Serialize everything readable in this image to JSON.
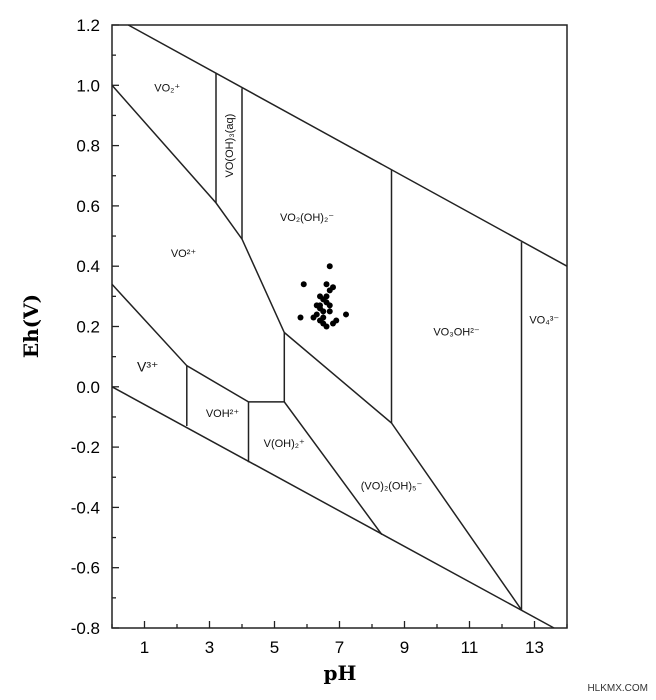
{
  "chart_data": {
    "type": "scatter",
    "title": "",
    "xlabel": "pH",
    "ylabel": "Eh(V)",
    "xlim": [
      0,
      14
    ],
    "ylim": [
      -0.8,
      1.2
    ],
    "xticks": [
      1,
      3,
      5,
      7,
      9,
      11,
      13
    ],
    "xtick_labels": [
      "1",
      "3",
      "5",
      "7",
      "9",
      "11",
      "13"
    ],
    "yticks": [
      1.2,
      1.0,
      0.8,
      0.6,
      0.4,
      0.2,
      0.0,
      -0.2,
      -0.4,
      -0.6,
      -0.8
    ],
    "ytick_labels": [
      "1.2",
      "1.0",
      "0.8",
      "0.6",
      "0.4",
      "0.2",
      "0.0",
      "-0.2",
      "-0.4",
      "-0.6",
      "-0.8"
    ],
    "grid": false,
    "boundaries": [
      {
        "id": "water-upper",
        "points": [
          [
            0.5,
            1.2
          ],
          [
            14,
            0.4
          ]
        ]
      },
      {
        "id": "water-lower",
        "points": [
          [
            0,
            0.0
          ],
          [
            13.6,
            -0.8
          ]
        ]
      },
      {
        "id": "vo2-vo-upper",
        "points": [
          [
            0,
            1.0
          ],
          [
            3.2,
            0.61
          ],
          [
            4.0,
            0.49
          ],
          [
            5.3,
            0.18
          ],
          [
            8.6,
            -0.12
          ],
          [
            12.6,
            -0.74
          ]
        ]
      },
      {
        "id": "v3-upper",
        "points": [
          [
            0,
            0.34
          ],
          [
            2.3,
            0.07
          ],
          [
            4.2,
            -0.05
          ],
          [
            5.3,
            -0.05
          ],
          [
            8.3,
            -0.49
          ]
        ]
      },
      {
        "id": "vo-oh3-left",
        "points": [
          [
            3.2,
            1.04
          ],
          [
            3.2,
            0.61
          ]
        ]
      },
      {
        "id": "vo-oh3-right",
        "points": [
          [
            4.0,
            0.99
          ],
          [
            4.0,
            0.49
          ]
        ]
      },
      {
        "id": "vo2oh2-right",
        "points": [
          [
            8.6,
            0.72
          ],
          [
            8.6,
            -0.12
          ]
        ]
      },
      {
        "id": "vo4-left",
        "points": [
          [
            12.6,
            0.48
          ],
          [
            12.6,
            -0.74
          ]
        ]
      },
      {
        "id": "v3-voh-split",
        "points": [
          [
            2.3,
            0.07
          ],
          [
            2.3,
            -0.13
          ]
        ]
      },
      {
        "id": "voh-voh2-split",
        "points": [
          [
            4.2,
            -0.05
          ],
          [
            4.2,
            -0.25
          ]
        ]
      },
      {
        "id": "voh2-vo2oh5-split",
        "points": [
          [
            5.3,
            0.18
          ],
          [
            5.3,
            -0.05
          ]
        ]
      }
    ],
    "regions": [
      {
        "label": "VO₂⁺",
        "x": 1.7,
        "y": 0.98
      },
      {
        "label": "VO(OH)₃(aq)",
        "x": 3.6,
        "y": 0.8,
        "rotated": true
      },
      {
        "label": "VO₂(OH)₂⁻",
        "x": 6.0,
        "y": 0.55
      },
      {
        "label": "VO²⁺",
        "x": 2.2,
        "y": 0.43
      },
      {
        "label": "VO₃OH²⁻",
        "x": 10.6,
        "y": 0.17
      },
      {
        "label": "VO₄³⁻",
        "x": 13.3,
        "y": 0.21
      },
      {
        "label": "V³⁺",
        "x": 1.1,
        "y": 0.05
      },
      {
        "label": "VOH²⁺",
        "x": 3.4,
        "y": -0.1
      },
      {
        "label": "V(OH)₂⁺",
        "x": 5.3,
        "y": -0.2
      },
      {
        "label": "(VO)₂(OH)₅⁻",
        "x": 8.6,
        "y": -0.34
      }
    ],
    "series": [
      {
        "points": [
          [
            5.9,
            0.34
          ],
          [
            6.7,
            0.4
          ],
          [
            5.8,
            0.23
          ],
          [
            6.2,
            0.23
          ],
          [
            7.2,
            0.24
          ],
          [
            6.4,
            0.3
          ],
          [
            6.5,
            0.29
          ],
          [
            6.6,
            0.3
          ],
          [
            6.7,
            0.32
          ],
          [
            6.6,
            0.34
          ],
          [
            6.8,
            0.33
          ],
          [
            6.3,
            0.27
          ],
          [
            6.4,
            0.26
          ],
          [
            6.6,
            0.28
          ],
          [
            6.5,
            0.25
          ],
          [
            6.3,
            0.24
          ],
          [
            6.4,
            0.22
          ],
          [
            6.5,
            0.23
          ],
          [
            6.7,
            0.25
          ],
          [
            6.9,
            0.22
          ],
          [
            6.6,
            0.2
          ],
          [
            6.5,
            0.21
          ],
          [
            6.8,
            0.21
          ],
          [
            6.4,
            0.27
          ],
          [
            6.7,
            0.27
          ]
        ]
      }
    ]
  },
  "watermark": "HLKMX.COM"
}
